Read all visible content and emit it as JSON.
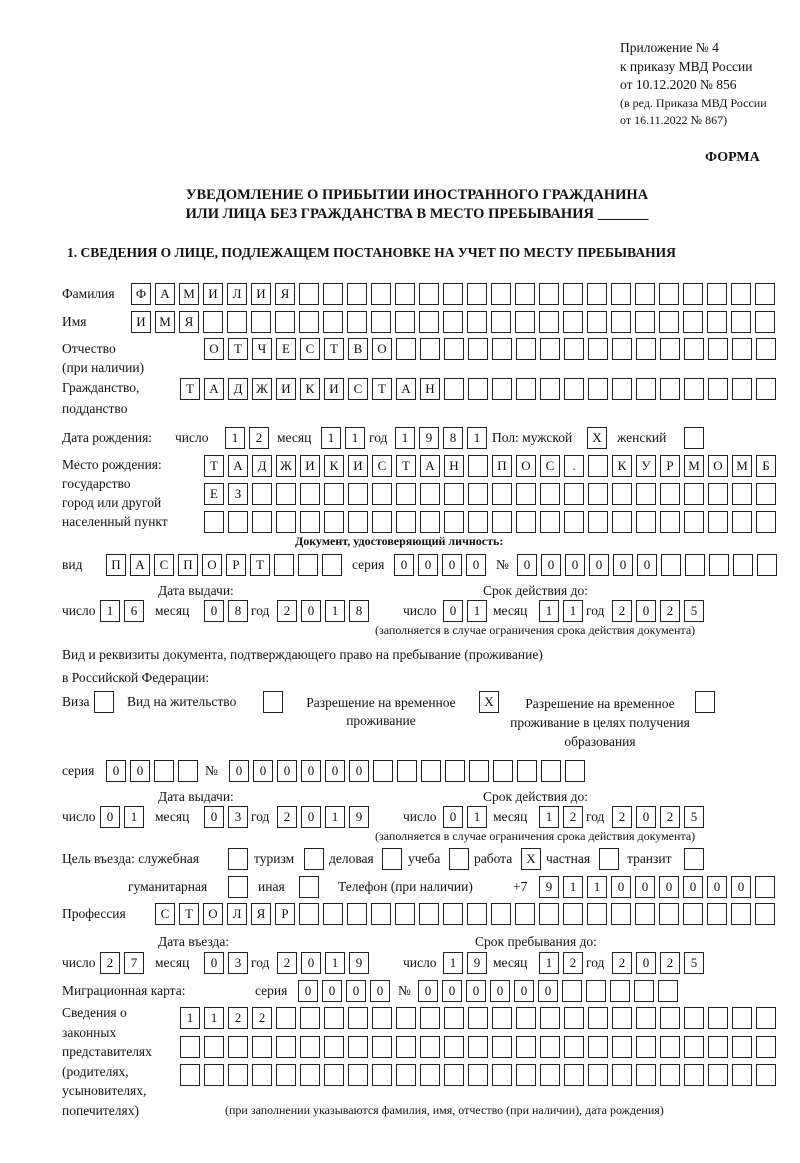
{
  "header": {
    "appendix": "Приложение № 4",
    "order": "к приказу МВД России",
    "order_date": "от 10.12.2020 № 856",
    "revision_1": "(в ред. Приказа МВД России",
    "revision_2": "от 16.11.2022 № 867)",
    "form_label": "ФОРМА",
    "title_1": "УВЕДОМЛЕНИЕ О ПРИБЫТИИ ИНОСТРАННОГО ГРАЖДАНИНА",
    "title_2": "ИЛИ ЛИЦА БЕЗ ГРАЖДАНСТВА В МЕСТО ПРЕБЫВАНИЯ _______",
    "section_1": "1. СВЕДЕНИЯ О ЛИЦЕ, ПОДЛЕЖАЩЕМ ПОСТАНОВКЕ НА УЧЕТ ПО МЕСТУ ПРЕБЫВАНИЯ"
  },
  "labels": {
    "surname": "Фамилия",
    "name": "Имя",
    "patronymic_1": "Отчество",
    "patronymic_2": "(при наличии)",
    "citizenship_1": "Гражданство,",
    "citizenship_2": "подданство",
    "birth_date": "Дата рождения:",
    "day": "число",
    "month": "месяц",
    "year": "год",
    "sex": "Пол: мужской",
    "female": "женский",
    "birthplace_1": "Место рождения:",
    "birthplace_2": "государство",
    "birthplace_3": "город или другой",
    "birthplace_4": "населенный пункт",
    "id_doc": "Документ, удостоверяющий личность:",
    "kind": "вид",
    "series": "серия",
    "number": "№",
    "issue_date": "Дата выдачи:",
    "valid_until": "Срок действия до:",
    "validity_note": "(заполняется в случае ограничения срока действия документа)",
    "right_doc_1": "Вид и реквизиты документа, подтверждающего право на пребывание (проживание)",
    "right_doc_2": "в Российской Федерации:",
    "visa": "Виза",
    "residence_permit": "Вид на жительство",
    "temp_residence": "Разрешение на временное проживание",
    "temp_residence_edu": "Разрешение на временное проживание в целях получения образования",
    "purpose": "Цель въезда: служебная",
    "tourism": "туризм",
    "business": "деловая",
    "study": "учеба",
    "work": "работа",
    "private": "частная",
    "transit": "транзит",
    "humanitarian": "гуманитарная",
    "other": "иная",
    "phone": "Телефон (при наличии)",
    "phone_prefix": "+7",
    "profession": "Профессия",
    "entry_date": "Дата въезда:",
    "stay_until": "Срок пребывания до:",
    "migration_card": "Миграционная карта:",
    "representatives": "Сведения о законных представителях (родителях, усыновителях, попечителях)",
    "representatives_note": "(при заполнении указываются фамилия, имя, отчество (при наличии), дата рождения)"
  },
  "person": {
    "surname": "ФАМИЛИЯ",
    "name": "ИМЯ",
    "patronymic": "ОТЧЕСТВО",
    "citizenship": "ТАДЖИКИСТАН",
    "birth_day": "12",
    "birth_month": "11",
    "birth_year": "1981",
    "male": "X",
    "female": "",
    "birthplace_1": "ТАДЖИКИСТАН ПОС. КУРМОМБ",
    "birthplace_2": "ЕЗ",
    "birthplace_3": ""
  },
  "id_document": {
    "kind": "ПАСПОРТ",
    "series": "0000",
    "number": "000000",
    "issue_day": "16",
    "issue_month": "08",
    "issue_year": "2018",
    "valid_day": "01",
    "valid_month": "11",
    "valid_year": "2025"
  },
  "right_document": {
    "visa": "",
    "residence_permit": "",
    "temp_residence": "X",
    "temp_residence_edu": "",
    "series": "00",
    "number": "000000",
    "issue_day": "01",
    "issue_month": "03",
    "issue_year": "2019",
    "valid_day": "01",
    "valid_month": "12",
    "valid_year": "2025"
  },
  "purpose": {
    "service": "",
    "tourism": "",
    "business": "",
    "study": "",
    "work": "X",
    "private": "",
    "transit": "",
    "humanitarian": "",
    "other": ""
  },
  "phone": "911000000",
  "profession": "СТОЛЯР",
  "entry": {
    "day": "27",
    "month": "03",
    "year": "2019",
    "stay_day": "19",
    "stay_month": "12",
    "stay_year": "2025"
  },
  "migration_card": {
    "series": "0000",
    "number": "000000"
  },
  "representatives": {
    "line_1": "1122",
    "line_2": "",
    "line_3": ""
  }
}
